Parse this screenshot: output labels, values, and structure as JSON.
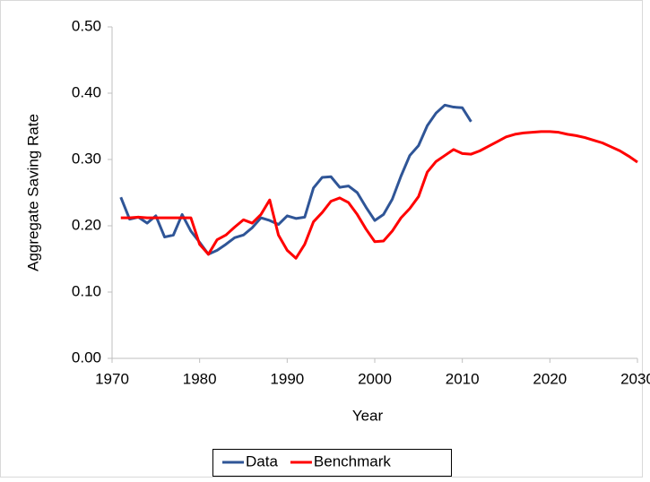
{
  "chart_data": {
    "type": "line",
    "x_label": "Year",
    "y_label": "Aggregate Saving Rate",
    "x": [
      1971,
      1972,
      1973,
      1974,
      1975,
      1976,
      1977,
      1978,
      1979,
      1980,
      1981,
      1982,
      1983,
      1984,
      1985,
      1986,
      1987,
      1988,
      1989,
      1990,
      1991,
      1992,
      1993,
      1994,
      1995,
      1996,
      1997,
      1998,
      1999,
      2000,
      2001,
      2002,
      2003,
      2004,
      2005,
      2006,
      2007,
      2008,
      2009,
      2010,
      2011,
      2012,
      2013,
      2014,
      2015,
      2016,
      2017,
      2018,
      2019,
      2020,
      2021,
      2022,
      2023,
      2024,
      2025,
      2026,
      2027,
      2028,
      2029,
      2030
    ],
    "series": [
      {
        "name": "Data",
        "color": "#2f5597",
        "values": [
          0.243,
          0.21,
          0.213,
          0.204,
          0.215,
          0.183,
          0.186,
          0.217,
          0.192,
          0.175,
          0.157,
          0.163,
          0.172,
          0.182,
          0.186,
          0.197,
          0.212,
          0.208,
          0.202,
          0.215,
          0.211,
          0.213,
          0.257,
          0.273,
          0.274,
          0.258,
          0.26,
          0.25,
          0.228,
          0.208,
          0.217,
          0.24,
          0.275,
          0.306,
          0.321,
          0.351,
          0.37,
          0.382,
          0.379,
          0.378,
          0.357,
          null,
          null,
          null,
          null,
          null,
          null,
          null,
          null,
          null,
          null,
          null,
          null,
          null,
          null,
          null,
          null,
          null,
          null,
          null
        ]
      },
      {
        "name": "Benchmark",
        "color": "#ff0000",
        "values": [
          0.212,
          0.212,
          0.213,
          0.212,
          0.212,
          0.212,
          0.212,
          0.212,
          0.212,
          0.172,
          0.157,
          0.179,
          0.186,
          0.198,
          0.209,
          0.204,
          0.217,
          0.239,
          0.186,
          0.163,
          0.151,
          0.172,
          0.206,
          0.22,
          0.237,
          0.242,
          0.235,
          0.217,
          0.195,
          0.176,
          0.177,
          0.192,
          0.212,
          0.226,
          0.244,
          0.281,
          0.297,
          0.306,
          0.315,
          0.309,
          0.308,
          0.313,
          0.32,
          0.327,
          0.334,
          0.338,
          0.34,
          0.341,
          0.342,
          0.342,
          0.341,
          0.338,
          0.336,
          0.333,
          0.329,
          0.325,
          0.319,
          0.313,
          0.305,
          0.296
        ]
      }
    ],
    "xlim": [
      1970,
      2030
    ],
    "xticks": [
      1970,
      1980,
      1990,
      2000,
      2010,
      2020,
      2030
    ],
    "ylim": [
      0,
      0.5
    ],
    "yticks": [
      {
        "value": 0,
        "label": "0.00"
      },
      {
        "value": 0.1,
        "label": "0.10"
      },
      {
        "value": 0.2,
        "label": "0.20"
      },
      {
        "value": 0.3,
        "label": "0.30"
      },
      {
        "value": 0.4,
        "label": "0.40"
      },
      {
        "value": 0.5,
        "label": "0.50"
      }
    ],
    "grid": false,
    "legend_position": "bottom"
  }
}
